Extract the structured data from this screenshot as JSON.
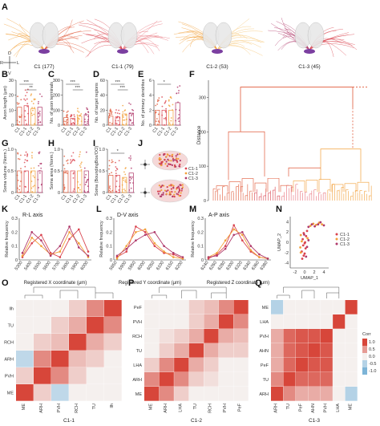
{
  "panels": {
    "A": "A",
    "B": "B",
    "C": "C",
    "D": "D",
    "E": "E",
    "F": "F",
    "G": "G",
    "H": "H",
    "I": "I",
    "J": "J",
    "K": "K",
    "L": "L",
    "M": "M",
    "N": "N",
    "O": "O",
    "P": "P",
    "Q": "Q"
  },
  "panelA": {
    "labels": [
      "C1 (177)",
      "C1-1 (79)",
      "C1-2 (53)",
      "C1-3 (45)"
    ],
    "compass": {
      "r": "R",
      "l": "L",
      "d": "D",
      "v": "V"
    }
  },
  "colors": {
    "c1": "#e05a3a",
    "c11": "#d9434e",
    "c12": "#f2a03a",
    "c13": "#b03a6b",
    "grid": "#dcdcdc"
  },
  "chart_data": [
    {
      "id": "B",
      "type": "bar",
      "ylabel": "Axon length (μm)",
      "categories": [
        "C1",
        "C1-1",
        "C1-2",
        "C1-3"
      ],
      "values": [
        12,
        13,
        11,
        12
      ],
      "ylim": [
        0,
        30
      ],
      "yticks": [
        "0",
        "10",
        "20",
        "30"
      ],
      "annot": [
        "***",
        "**"
      ]
    },
    {
      "id": "C",
      "type": "bar",
      "ylabel": "No. of axon terminals",
      "categories": [
        "C1",
        "C1-1",
        "C1-2",
        "C1-3"
      ],
      "values": [
        50,
        45,
        60,
        70
      ],
      "ylim": [
        0,
        300
      ],
      "yticks": [
        "0",
        "100",
        "200",
        "300"
      ],
      "annot": [
        "***",
        "***"
      ]
    },
    {
      "id": "D",
      "type": "bar",
      "ylabel": "No. of target regions",
      "categories": [
        "C1",
        "C1-1",
        "C1-2",
        "C1-3"
      ],
      "values": [
        12,
        11,
        15,
        16
      ],
      "ylim": [
        0,
        60
      ],
      "yticks": [
        "0",
        "20",
        "40",
        "60"
      ],
      "annot": [
        "***",
        "***"
      ]
    },
    {
      "id": "E",
      "type": "bar",
      "ylabel": "No. of primary dendrites",
      "categories": [
        "C1",
        "C1-1",
        "C1-2",
        "C1-3"
      ],
      "values": [
        2,
        2,
        2,
        3
      ],
      "ylim": [
        0,
        6
      ],
      "yticks": [
        "0",
        "2",
        "4",
        "6"
      ],
      "annot": [
        "*"
      ]
    },
    {
      "id": "G",
      "type": "bar",
      "ylabel": "Soma volume (Norm.)",
      "categories": [
        "C1",
        "C1-1",
        "C1-2",
        "C1-3"
      ],
      "values": [
        0.5,
        0.5,
        0.5,
        0.5
      ],
      "ylim": [
        0,
        1
      ],
      "yticks": [
        "0",
        "0.5",
        "1.0"
      ],
      "annot": []
    },
    {
      "id": "H",
      "type": "bar",
      "ylabel": "Soma area (Norm.)",
      "categories": [
        "C1",
        "C1-1",
        "C1-2",
        "C1-3"
      ],
      "values": [
        0.5,
        0.5,
        0.5,
        0.5
      ],
      "ylim": [
        0,
        1
      ],
      "yticks": [
        "0",
        "0.5",
        "1.0"
      ],
      "annot": []
    },
    {
      "id": "I",
      "type": "bar",
      "ylabel": "Soma (BoundingBox/OO)",
      "categories": [
        "C1",
        "C1-1",
        "C1-2",
        "C1-3"
      ],
      "values": [
        0.4,
        0.4,
        0.35,
        0.45
      ],
      "ylim": [
        0,
        1
      ],
      "yticks": [
        "0",
        "0.5",
        "1.0"
      ],
      "annot": [
        "*"
      ]
    },
    {
      "id": "K",
      "type": "line",
      "title": "R-L axis",
      "xlabel": "Registered X coordinate (μm)",
      "ylabel": "Relative frequency",
      "xticks": [
        "5300",
        "5400",
        "5500",
        "5600",
        "5700",
        "5800",
        "5900",
        "6000"
      ],
      "ylim": [
        0,
        0.3
      ],
      "yticks": [
        "0",
        "0.1",
        "0.2",
        "0.3"
      ],
      "series": [
        {
          "values": [
            0.02,
            0.12,
            0.18,
            0.05,
            0.02,
            0.15,
            0.22,
            0.06
          ]
        },
        {
          "values": [
            0.03,
            0.16,
            0.1,
            0.04,
            0.06,
            0.2,
            0.12,
            0.02
          ]
        },
        {
          "values": [
            0.05,
            0.2,
            0.14,
            0.03,
            0.1,
            0.24,
            0.09,
            0.03
          ]
        }
      ]
    },
    {
      "id": "L",
      "type": "line",
      "title": "D-V axis",
      "xlabel": "Registered Y coordinate (μm)",
      "ylabel": "Relative frequency",
      "xticks": [
        "5850",
        "5900",
        "5950",
        "6000",
        "6050",
        "6100",
        "6150",
        "6200"
      ],
      "ylim": [
        0,
        0.3
      ],
      "yticks": [
        "0",
        "0.1",
        "0.2",
        "0.3"
      ],
      "series": [
        {
          "values": [
            0.02,
            0.06,
            0.24,
            0.2,
            0.1,
            0.05,
            0.04,
            0.01
          ]
        },
        {
          "values": [
            0.01,
            0.1,
            0.2,
            0.22,
            0.12,
            0.06,
            0.02,
            0.01
          ]
        },
        {
          "values": [
            0.03,
            0.08,
            0.14,
            0.18,
            0.2,
            0.1,
            0.05,
            0.02
          ]
        }
      ]
    },
    {
      "id": "M",
      "type": "line",
      "title": "A-P axis",
      "xlabel": "Registered Z coordinate (μm)",
      "ylabel": "Relative frequency",
      "xticks": [
        "6240",
        "6260",
        "6280",
        "6300",
        "6320",
        "6340",
        "6360",
        "6380"
      ],
      "ylim": [
        0,
        0.3
      ],
      "yticks": [
        "0",
        "0.1",
        "0.2",
        "0.3"
      ],
      "series": [
        {
          "values": [
            0.01,
            0.04,
            0.1,
            0.25,
            0.14,
            0.06,
            0.02,
            0.01
          ]
        },
        {
          "values": [
            0.02,
            0.05,
            0.14,
            0.22,
            0.18,
            0.07,
            0.02,
            0.01
          ]
        },
        {
          "values": [
            0.02,
            0.03,
            0.08,
            0.18,
            0.2,
            0.1,
            0.04,
            0.01
          ]
        }
      ]
    },
    {
      "id": "N",
      "type": "scatter",
      "xlabel": "UMAP_1",
      "ylabel": "UMAP_2",
      "xticks": [
        "-2",
        "0",
        "2",
        "4"
      ],
      "yticks": [
        "-4",
        "-2",
        "0",
        "2",
        "4"
      ],
      "legend": [
        "C1-1",
        "C1-2",
        "C1-3"
      ],
      "points": {
        "C1-1": [
          [
            -0.5,
            -3.2
          ],
          [
            -0.2,
            -2.6
          ],
          [
            0.0,
            -2.2
          ],
          [
            -0.6,
            -1.8
          ],
          [
            0.2,
            -1.2
          ],
          [
            -0.3,
            -0.6
          ],
          [
            0.1,
            0.0
          ],
          [
            -0.4,
            0.6
          ],
          [
            0.3,
            1.2
          ],
          [
            -0.2,
            1.8
          ],
          [
            0.5,
            2.2
          ],
          [
            0.0,
            -0.2
          ]
        ],
        "C1-2": [
          [
            1.2,
            3.2
          ],
          [
            1.8,
            3.6
          ],
          [
            2.4,
            3.4
          ],
          [
            3.0,
            3.8
          ],
          [
            3.6,
            3.5
          ],
          [
            -0.8,
            -2.0
          ],
          [
            -0.9,
            -1.0
          ],
          [
            -0.6,
            0.2
          ],
          [
            0.6,
            0.8
          ],
          [
            -0.8,
            1.4
          ]
        ],
        "C1-3": [
          [
            0.8,
            3.0
          ],
          [
            1.5,
            3.5
          ],
          [
            2.1,
            3.1
          ],
          [
            2.8,
            3.5
          ],
          [
            3.3,
            3.9
          ],
          [
            4.0,
            3.3
          ],
          [
            0.3,
            -2.8
          ],
          [
            0.5,
            -0.9
          ],
          [
            -0.1,
            1.5
          ],
          [
            0.8,
            0.4
          ]
        ]
      }
    },
    {
      "id": "O",
      "type": "heatmap",
      "xlabel": "C1-1",
      "labels": [
        "ME",
        "ARH",
        "PVH",
        "RCH",
        "TU",
        "llh"
      ],
      "rows": [
        "llh",
        "TU",
        "RCH",
        "ARH",
        "PVH",
        "ME"
      ],
      "values": [
        [
          0,
          0,
          0,
          0.2,
          0.6,
          1
        ],
        [
          0,
          0,
          0.2,
          0.4,
          1,
          0.6
        ],
        [
          0,
          0.2,
          0.3,
          1,
          0.4,
          0.2
        ],
        [
          -0.4,
          0.6,
          1,
          0.3,
          0.2,
          0
        ],
        [
          0.2,
          1,
          0.6,
          0.2,
          0,
          0
        ],
        [
          1,
          0.2,
          -0.4,
          0,
          0,
          0
        ]
      ]
    },
    {
      "id": "P",
      "type": "heatmap",
      "xlabel": "C1-2",
      "labels": [
        "ME",
        "ARH",
        "LHA",
        "TU",
        "RCH",
        "PVH",
        "PeF"
      ],
      "rows": [
        "PeF",
        "PVH",
        "RCH",
        "TU",
        "LHA",
        "ARH",
        "ME"
      ],
      "values": [
        [
          0,
          0,
          0,
          0.2,
          0.3,
          0.6,
          1
        ],
        [
          0,
          0,
          0,
          0.2,
          0.4,
          1,
          0.6
        ],
        [
          0,
          0.1,
          0.2,
          0.4,
          1,
          0.4,
          0.3
        ],
        [
          0,
          0.2,
          0.4,
          1,
          0.4,
          0.2,
          0.2
        ],
        [
          0.2,
          0.6,
          1,
          0.4,
          0.2,
          0,
          0
        ],
        [
          0.6,
          1,
          0.6,
          0.2,
          0.1,
          0,
          0
        ],
        [
          1,
          0.6,
          0.2,
          0,
          0,
          0,
          0
        ]
      ]
    },
    {
      "id": "Q",
      "type": "heatmap",
      "xlabel": "C1-3",
      "labels": [
        "ARH",
        "TU",
        "PeF",
        "AHN",
        "PVH",
        "LHA",
        "ME"
      ],
      "rows": [
        "ME",
        "LHA",
        "PVH",
        "AHN",
        "PeF",
        "TU",
        "ARH"
      ],
      "values": [
        [
          -0.5,
          0,
          0,
          0,
          0,
          0,
          1
        ],
        [
          0,
          0,
          0,
          0,
          0,
          1,
          0
        ],
        [
          0.4,
          0.8,
          0.9,
          0.9,
          1,
          0,
          0
        ],
        [
          0.4,
          0.8,
          0.9,
          1,
          0.9,
          0,
          0
        ],
        [
          0.4,
          0.8,
          1,
          0.9,
          0.9,
          0,
          0
        ],
        [
          0.6,
          1,
          0.8,
          0.8,
          0.8,
          0,
          0
        ],
        [
          1,
          0.6,
          0.4,
          0.4,
          0.4,
          0,
          -0.5
        ]
      ],
      "legend_title": "Corr",
      "legend_ticks": [
        "1.0",
        "0.5",
        "0.0",
        "-0.5",
        "-1.0"
      ]
    }
  ],
  "panelF": {
    "ylabel": "Distance",
    "yticks": [
      "0",
      "100",
      "200",
      "300"
    ]
  },
  "panelJ": {
    "legend": [
      "C1-1",
      "C1-2",
      "C1-3"
    ]
  }
}
